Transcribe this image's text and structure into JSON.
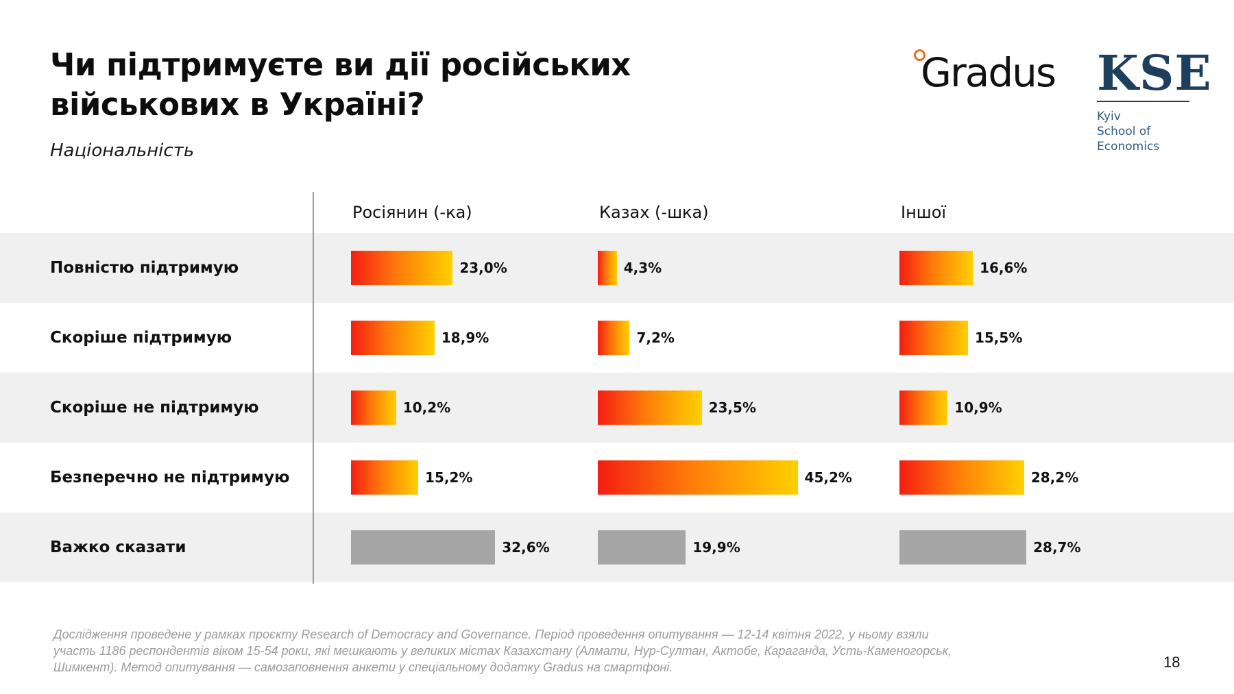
{
  "title": "Чи підтримуєте ви дії російських військових в Україні?",
  "subtitle": "Національність",
  "logos": {
    "gradus": "Gradus",
    "kse_mark": "KSE",
    "kse_lines": [
      "Kyiv",
      "School of",
      "Economics"
    ]
  },
  "colors": {
    "gradient_start": "#f51d12",
    "gradient_mid": "#fe7a0a",
    "gradient_end": "#ffd001",
    "undecided_bar": "#a6a6a6",
    "kse_blue": "#1d3e5c",
    "gradus_orange": "#f26a1b"
  },
  "chart_data": {
    "type": "bar",
    "orientation": "horizontal",
    "categories": [
      "Повністю підтримую",
      "Скоріше підтримую",
      "Скоріше не підтримую",
      "Безперечно не підтримую",
      "Важко сказати"
    ],
    "series": [
      {
        "name": "Росіянин (-ка)",
        "values": [
          23.0,
          18.9,
          10.2,
          15.2,
          32.6
        ],
        "labels": [
          "23,0%",
          "18,9%",
          "10,2%",
          "15,2%",
          "32,6%"
        ]
      },
      {
        "name": "Казах (-шка)",
        "values": [
          4.3,
          7.2,
          23.5,
          45.2,
          19.9
        ],
        "labels": [
          "4,3%",
          "7,2%",
          "23,5%",
          "45,2%",
          "19,9%"
        ]
      },
      {
        "name": "Іншої",
        "values": [
          16.6,
          15.5,
          10.9,
          28.2,
          28.7
        ],
        "labels": [
          "16,6%",
          "15,5%",
          "10,9%",
          "28,2%",
          "28,7%"
        ]
      }
    ],
    "unit": "%"
  },
  "footnote": "Дослідження проведене у рамках проєкту Research of Democracy and Governance. Період проведення опитування — 12-14 квітня 2022, у ньому взяли участь 1186 респондентів віком 15-54 роки, які мешкають у великих містах Казахстану (Алмати, Нур-Султан, Актобе, Караганда, Усть-Каменогорськ, Шимкент). Метод опитування — самозаповнення анкети у спеціальному додатку Gradus на смартфоні.",
  "page_number": "18"
}
